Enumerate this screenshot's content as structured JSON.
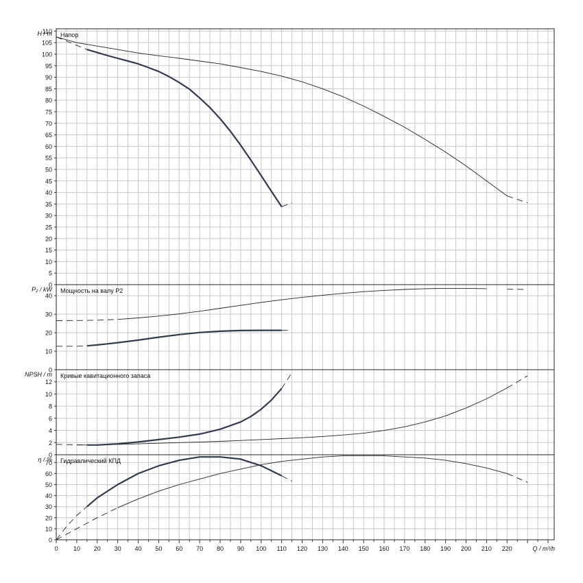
{
  "x_axis": {
    "label": "Q / m³/h",
    "ticks": [
      0,
      10,
      20,
      30,
      40,
      50,
      60,
      70,
      80,
      90,
      100,
      110,
      120,
      130,
      140,
      150,
      160,
      170,
      180,
      190,
      200,
      210,
      220
    ]
  },
  "chart_data": [
    {
      "type": "line",
      "title": "Напор",
      "ylabel": "H / m",
      "xlim": [
        0,
        243
      ],
      "ylim": [
        0,
        111
      ],
      "yticks": [
        0,
        5,
        10,
        15,
        20,
        25,
        30,
        35,
        40,
        45,
        50,
        55,
        60,
        65,
        70,
        75,
        80,
        85,
        90,
        95,
        100,
        105,
        110
      ],
      "grid": true,
      "series": [
        {
          "weight": "thin",
          "x": [
            0,
            10,
            20,
            30,
            40,
            50,
            60,
            70,
            80,
            90,
            100,
            110,
            120,
            130,
            140,
            150,
            160,
            170,
            180,
            190,
            200,
            210,
            220,
            230
          ],
          "y": [
            107.5,
            105,
            103.5,
            102,
            100.5,
            99.3,
            98.2,
            97,
            95.8,
            94.2,
            92.5,
            90.5,
            88,
            85,
            81.5,
            77.5,
            73,
            68.3,
            63,
            57.5,
            51.5,
            45,
            38.5,
            35.5
          ],
          "dashed_until": 0,
          "dashed_from": 220
        },
        {
          "weight": "thick",
          "x": [
            0,
            15,
            20,
            25,
            30,
            35,
            40,
            45,
            50,
            55,
            60,
            65,
            70,
            75,
            80,
            85,
            90,
            95,
            100,
            105,
            110,
            115
          ],
          "y": [
            107.5,
            102,
            100.7,
            99.4,
            98.2,
            97,
            95.8,
            94.2,
            92.5,
            90.3,
            87.7,
            84.8,
            81,
            76.8,
            72,
            66.5,
            60.5,
            54,
            47.3,
            40.5,
            33.8,
            35.5
          ],
          "dashed_until": 15,
          "dashed_from": 110
        }
      ]
    },
    {
      "type": "line",
      "title": "Мощность на валу P2",
      "ylabel": "P₂ / kW",
      "xlim": [
        0,
        243
      ],
      "ylim": [
        0,
        46
      ],
      "yticks": [
        0,
        10,
        20,
        30,
        40
      ],
      "grid": true,
      "series": [
        {
          "weight": "thin",
          "x": [
            0,
            10,
            20,
            30,
            40,
            50,
            60,
            70,
            80,
            90,
            100,
            110,
            120,
            130,
            140,
            150,
            160,
            170,
            180,
            190,
            200,
            210,
            220,
            230
          ],
          "y": [
            26.5,
            26.6,
            26.8,
            27.2,
            28,
            29,
            30.2,
            31.6,
            33.2,
            34.8,
            36.4,
            37.8,
            39.1,
            40.3,
            41.3,
            42.2,
            42.9,
            43.4,
            43.8,
            44,
            44,
            43.8,
            43.5,
            43.4
          ],
          "dashed_until": 30,
          "dashed_from": 218
        },
        {
          "weight": "thick",
          "x": [
            0,
            10,
            15,
            20,
            25,
            30,
            40,
            50,
            60,
            70,
            80,
            90,
            100,
            110,
            115
          ],
          "y": [
            12.7,
            12.7,
            12.9,
            13.4,
            14,
            14.6,
            16,
            17.6,
            19,
            20.1,
            20.8,
            21.2,
            21.3,
            21.3,
            21.3
          ],
          "dashed_until": 15,
          "dashed_from": 110
        }
      ]
    },
    {
      "type": "line",
      "title": "Кривые кавитационного запаса",
      "ylabel": "NPSH / m",
      "xlim": [
        0,
        243
      ],
      "ylim": [
        0,
        14
      ],
      "yticks": [
        0,
        2,
        4,
        6,
        8,
        10,
        12
      ],
      "grid": true,
      "series": [
        {
          "weight": "thin",
          "x": [
            0,
            10,
            20,
            30,
            40,
            50,
            60,
            70,
            80,
            90,
            100,
            110,
            120,
            130,
            140,
            150,
            160,
            170,
            180,
            190,
            200,
            210,
            220,
            230
          ],
          "y": [
            1.7,
            1.6,
            1.6,
            1.7,
            1.8,
            1.9,
            2.0,
            2.1,
            2.2,
            2.35,
            2.5,
            2.65,
            2.8,
            3.0,
            3.25,
            3.55,
            4.0,
            4.6,
            5.4,
            6.4,
            7.7,
            9.2,
            11,
            13
          ],
          "dashed_until": 5,
          "dashed_from": 220
        },
        {
          "weight": "thick",
          "x": [
            0,
            15,
            20,
            30,
            40,
            50,
            60,
            70,
            80,
            90,
            95,
            100,
            105,
            110,
            115
          ],
          "y": [
            1.7,
            1.6,
            1.6,
            1.8,
            2.1,
            2.5,
            2.9,
            3.4,
            4.2,
            5.4,
            6.3,
            7.5,
            9.0,
            10.9,
            13.5
          ],
          "dashed_until": 15,
          "dashed_from": 110
        }
      ]
    },
    {
      "type": "line",
      "title": "Гидравлический КПД",
      "ylabel": "η / %",
      "xlim": [
        0,
        243
      ],
      "ylim": [
        0,
        77
      ],
      "yticks": [
        0,
        10,
        20,
        30,
        40,
        50,
        60,
        70
      ],
      "grid": true,
      "series": [
        {
          "weight": "thin",
          "x": [
            0,
            10,
            20,
            30,
            40,
            50,
            60,
            70,
            80,
            90,
            100,
            110,
            120,
            130,
            140,
            150,
            160,
            170,
            180,
            190,
            200,
            210,
            220,
            230
          ],
          "y": [
            0,
            10,
            20,
            29,
            37,
            44,
            50,
            55,
            60,
            64,
            68,
            71,
            73,
            75,
            76,
            76,
            76,
            75,
            74,
            72,
            69,
            65,
            60,
            52
          ],
          "dashed_until": 30,
          "dashed_from": 220
        },
        {
          "weight": "thick",
          "x": [
            0,
            5,
            10,
            15,
            20,
            30,
            40,
            50,
            60,
            70,
            80,
            90,
            100,
            110,
            115
          ],
          "y": [
            0,
            12,
            22,
            30,
            38,
            50,
            60,
            67,
            72,
            75,
            75,
            73,
            67,
            58,
            53
          ],
          "dashed_until": 15,
          "dashed_from": 110
        }
      ]
    }
  ]
}
